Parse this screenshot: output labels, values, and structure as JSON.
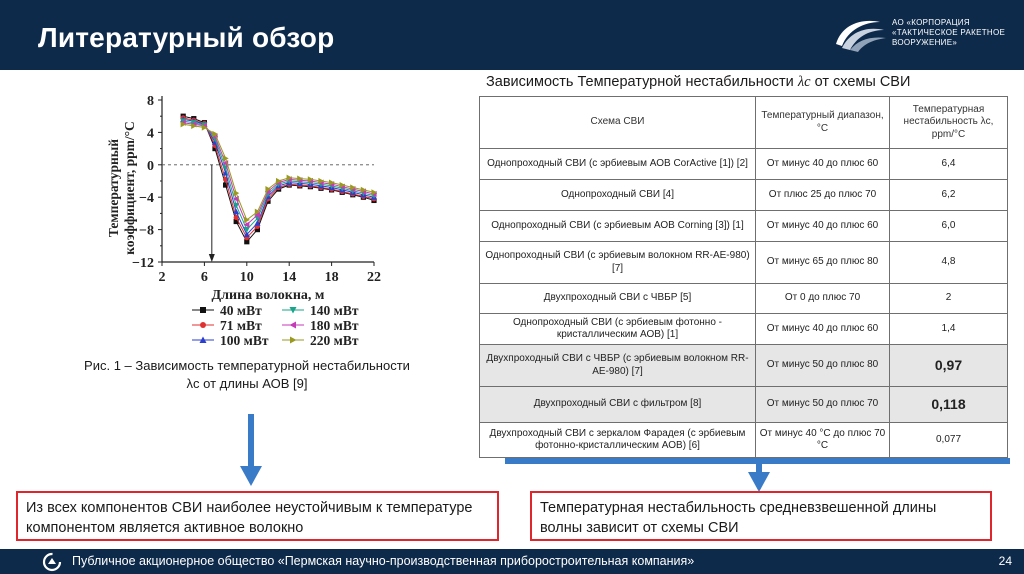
{
  "header": {
    "title": "Литературный обзор",
    "logo_lines": [
      "АО «КОРПОРАЦИЯ",
      "«ТАКТИЧЕСКОЕ РАКЕТНОЕ",
      "ВООРУЖЕНИЕ»"
    ]
  },
  "chart_data": {
    "type": "line",
    "xlabel": "Длина волокна, м",
    "ylabel_lines": [
      "Температурный",
      "коэффициент, ppm/°C"
    ],
    "xlim": [
      2,
      22
    ],
    "ylim": [
      -12,
      8
    ],
    "x_ticks": [
      "2",
      "6",
      "10",
      "14",
      "18",
      "22"
    ],
    "y_ticks": [
      "8",
      "4",
      "0",
      "−4",
      "−8",
      "−12"
    ],
    "x": [
      4,
      5,
      6,
      7,
      8,
      9,
      10,
      11,
      12,
      13,
      14,
      15,
      16,
      17,
      18,
      19,
      20,
      21,
      22
    ],
    "series": [
      {
        "name": "40 мВт",
        "color": "#111111",
        "marker": "square",
        "values": [
          6.0,
          5.7,
          5.2,
          2.0,
          -2.5,
          -7.0,
          -9.5,
          -8.0,
          -4.5,
          -3.0,
          -2.5,
          -2.6,
          -2.7,
          -2.9,
          -3.1,
          -3.4,
          -3.7,
          -4.0,
          -4.4
        ]
      },
      {
        "name": "71 мВт",
        "color": "#e03030",
        "marker": "circle",
        "values": [
          5.8,
          5.5,
          5.1,
          2.4,
          -1.8,
          -6.5,
          -9.0,
          -7.6,
          -4.2,
          -2.8,
          -2.4,
          -2.5,
          -2.6,
          -2.8,
          -3.0,
          -3.3,
          -3.6,
          -3.9,
          -4.2
        ]
      },
      {
        "name": "100 мВт",
        "color": "#2a3fd0",
        "marker": "triangle-up",
        "values": [
          5.6,
          5.4,
          5.0,
          2.8,
          -1.0,
          -5.8,
          -8.6,
          -7.2,
          -3.9,
          -2.6,
          -2.2,
          -2.3,
          -2.4,
          -2.6,
          -2.8,
          -3.1,
          -3.4,
          -3.7,
          -4.0
        ]
      },
      {
        "name": "140 мВт",
        "color": "#1aa58a",
        "marker": "triangle-down",
        "values": [
          5.4,
          5.2,
          4.9,
          3.2,
          -0.4,
          -5.0,
          -8.0,
          -6.6,
          -3.6,
          -2.4,
          -2.0,
          -2.1,
          -2.2,
          -2.4,
          -2.6,
          -2.9,
          -3.2,
          -3.5,
          -3.8
        ]
      },
      {
        "name": "180 мВт",
        "color": "#c43ab8",
        "marker": "triangle-left",
        "values": [
          5.2,
          5.0,
          4.8,
          3.5,
          0.2,
          -4.2,
          -7.4,
          -6.2,
          -3.3,
          -2.2,
          -1.8,
          -1.9,
          -2.0,
          -2.2,
          -2.4,
          -2.7,
          -3.0,
          -3.3,
          -3.6
        ]
      },
      {
        "name": "220 мВт",
        "color": "#9a9a20",
        "marker": "triangle-right",
        "values": [
          5.0,
          4.8,
          4.6,
          3.8,
          0.8,
          -3.5,
          -6.8,
          -5.8,
          -3.0,
          -2.0,
          -1.6,
          -1.7,
          -1.8,
          -2.0,
          -2.2,
          -2.5,
          -2.8,
          -3.1,
          -3.4
        ]
      }
    ],
    "legend": "bottom"
  },
  "caption": {
    "line1": "Рис. 1 – Зависимость температурной нестабильности",
    "line2": "λc от длины АОВ [9]"
  },
  "table": {
    "title_pre": "Зависимость Температурной нестабильности",
    "title_sym": "λc",
    "title_post": "от схемы СВИ",
    "headers": [
      "Схема СВИ",
      "Температурный диапазон, °С",
      "Температурная нестабильность λc, ppm/°C"
    ],
    "rows": [
      {
        "scheme": "Однопроходный СВИ (с эрбиевым АОВ CorActive [1]) [2]",
        "range": "От минус 40 до плюс 60",
        "value": "6,4"
      },
      {
        "scheme": "Однопроходный СВИ [4]",
        "range": "От плюс 25 до плюс 70",
        "value": "6,2"
      },
      {
        "scheme": "Однопроходный СВИ (с эрбиевым АОВ Corning [3]) [1]",
        "range": "От минус 40 до плюс 60",
        "value": "6,0"
      },
      {
        "scheme": "Однопроходный СВИ (с эрбиевым волокном RR-AE-980) [7]",
        "range": "От минус 65 до плюс 80",
        "value": "4,8"
      },
      {
        "scheme": "Двухпроходный СВИ с ЧВБР [5]",
        "range": "От 0 до плюс 70",
        "value": "2"
      },
      {
        "scheme": "Однопроходный СВИ (с эрбиевым фотонно - кристаллическим АОВ) [1]",
        "range": "От минус 40 до плюс 60",
        "value": "1,4"
      },
      {
        "scheme": "Двухпроходный СВИ с ЧВБР (с эрбиевым волокном RR-AE-980) [7]",
        "range": "От минус 50 до плюс 80",
        "value": "0,97"
      },
      {
        "scheme": "Двухпроходный СВИ с фильтром [8]",
        "range": "От минус 50 до плюс 70",
        "value": "0,118"
      },
      {
        "scheme": "Двухпроходный СВИ с зеркалом Фарадея (с эрбиевым фотонно-кристаллическим АОВ) [6]",
        "range": "От минус 40 °С до плюс 70 °С",
        "value": "0,077"
      }
    ]
  },
  "box_left": "Из всех компонентов СВИ наиболее неустойчивым к температуре компонентом является активное волокно",
  "box_right": "Температурная нестабильность средневзвешенной длины волны зависит от схемы СВИ",
  "footer": {
    "text": "Публичное акционерное общество «Пермская научно-производственная приборостроительная компания»",
    "page": "24"
  },
  "colors": {
    "header_bg": "#0e2a4a",
    "accent_blue": "#3a7bc8",
    "box_border": "#e0262d",
    "highlight_row": "#e6e6e6"
  }
}
